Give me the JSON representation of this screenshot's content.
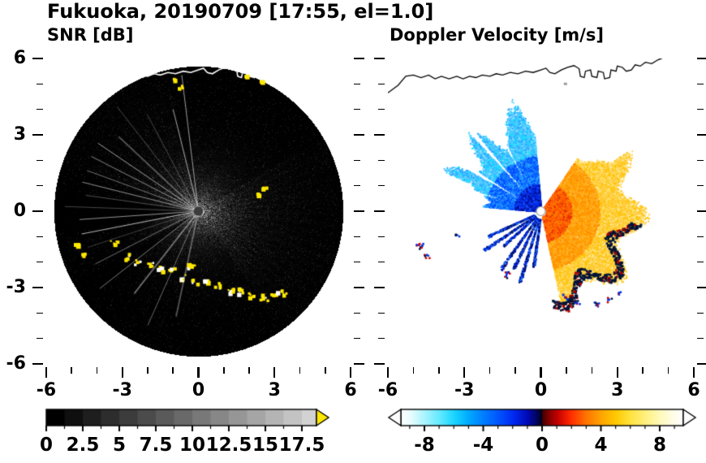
{
  "title": "Fukuoka, 20190709 [17:55, el=1.0]",
  "chart_data": {
    "type": "heatmap",
    "subtype": "radar-ppi-pair",
    "title": "Fukuoka, 20190709 [17:55, el=1.0]",
    "station": "Fukuoka",
    "date": "20190709",
    "time": "17:55",
    "elevation": "el=1.0",
    "panels": [
      {
        "label": "SNR [dB]",
        "xlim": [
          -6,
          6
        ],
        "ylim": [
          -6,
          6
        ],
        "xticks": [
          -6,
          -3,
          0,
          3,
          6
        ],
        "yticks": [
          6,
          3,
          0,
          -3,
          -6
        ],
        "minor_tick_step": 1,
        "scan_radius": 5.7,
        "colorbar": {
          "min": 0,
          "max": 18.5,
          "tick_values": [
            0,
            2.5,
            5,
            7.5,
            10,
            12.5,
            15,
            17.5
          ],
          "tick_labels": [
            "0",
            "2.5",
            "5",
            "7.5",
            "10",
            "12.5",
            "15",
            "17.5"
          ],
          "minor_step": 1.25,
          "colormap": "grayscale-black-to-lightgray",
          "over_arrow_color": "#ffe800"
        },
        "clutter_arc": [
          [
            -3.35,
            -1.25
          ],
          [
            -2.9,
            -1.75
          ],
          [
            -2.45,
            -2.0
          ],
          [
            -1.95,
            -2.1
          ],
          [
            -1.5,
            -2.25
          ],
          [
            -1.05,
            -2.3
          ],
          [
            -0.6,
            -2.55
          ],
          [
            -0.3,
            -2.1
          ],
          [
            -0.15,
            -2.7
          ],
          [
            0.3,
            -2.75
          ],
          [
            0.75,
            -2.9
          ],
          [
            1.2,
            -3.05
          ],
          [
            1.65,
            -3.1
          ],
          [
            2.1,
            -3.3
          ],
          [
            2.55,
            -3.35
          ],
          [
            2.95,
            -3.25
          ],
          [
            3.3,
            -3.15
          ]
        ],
        "clutter_blobs": [
          [
            -4.85,
            -1.3
          ],
          [
            -4.6,
            -1.65
          ],
          [
            2.3,
            0.75
          ],
          [
            2.55,
            0.9
          ],
          [
            -1.05,
            5.25
          ],
          [
            -0.75,
            4.95
          ],
          [
            1.9,
            5.3
          ],
          [
            2.5,
            5.2
          ]
        ],
        "features": [
          "black circular scan disk radius ~5.7 centered on radar origin",
          "bright speckled echo fan east of radar out to r~4",
          "thin bright radial spokes toward west-northwest and southwest",
          "yellow ground-clutter arc from (-3.3,-1.3) through (0.3,-2.8) to (3.3,-3.2)",
          "isolated yellow clutter blobs near (-4.8,-1.3) and (2.4,0.8)",
          "white coastline trace along top of scan with small yellow echoes",
          "gray radar blind-spot dot at origin"
        ]
      },
      {
        "label": "Doppler Velocity [m/s]",
        "xlim": [
          -6,
          6
        ],
        "ylim": [
          -6,
          6
        ],
        "xticks": [
          -6,
          -3,
          0,
          3,
          6
        ],
        "yticks": [
          6,
          3,
          0,
          -3,
          -6
        ],
        "minor_tick_step": 1,
        "colorbar": {
          "min": -9.6,
          "max": 9.6,
          "tick_values": [
            -8,
            -4,
            0,
            4,
            8
          ],
          "tick_labels": [
            "-8",
            "-4",
            "0",
            "4",
            "8"
          ],
          "minor_step": 1,
          "colormap": "white-cyan-blue-navy-red-orange-yellow-white",
          "under_arrow_color": "#ffffff",
          "over_arrow_color": "#ffffff"
        },
        "clutter_specks": [
          [
            -4.78,
            -1.32,
            0.14,
            12
          ],
          [
            -4.5,
            -1.72,
            0.1,
            6
          ],
          [
            -1.38,
            -2.48,
            0.13,
            9
          ],
          [
            -3.3,
            -0.95,
            0.08,
            4
          ],
          [
            0.9,
            -3.35,
            0.11,
            7
          ],
          [
            1.4,
            -3.55,
            0.1,
            6
          ],
          [
            2.15,
            -3.62,
            0.11,
            7
          ],
          [
            2.65,
            -3.45,
            0.1,
            5
          ],
          [
            3.05,
            -3.2,
            0.08,
            4
          ]
        ],
        "features": [
          "blue/cyan negative-velocity fan northwest of radar out to r~3.5",
          "white no-data ray gaps inside the blue fan",
          "orange/yellow positive-velocity fan east-southeast of radar out to r~3.8",
          "navy speckles along the southern edge of the positive fan",
          "mixed red/blue clutter specks near (-4.8,-1.4) and (-1.4,-2.5)",
          "navy blobs along bottom edge near (1,-3.4) to (3,-3.3)",
          "black coastline trace along top, white dot at radar origin"
        ]
      }
    ],
    "coastline": [
      [
        -6.0,
        4.65
      ],
      [
        -5.6,
        4.95
      ],
      [
        -5.3,
        5.3
      ],
      [
        -5.0,
        5.35
      ],
      [
        -4.7,
        5.25
      ],
      [
        -4.4,
        5.35
      ],
      [
        -4.15,
        5.2
      ],
      [
        -3.9,
        5.3
      ],
      [
        -3.6,
        5.2
      ],
      [
        -3.3,
        5.3
      ],
      [
        -3.05,
        5.2
      ],
      [
        -2.8,
        5.3
      ],
      [
        -2.55,
        5.25
      ],
      [
        -2.3,
        5.35
      ],
      [
        -2.0,
        5.3
      ],
      [
        -1.75,
        5.4
      ],
      [
        -1.5,
        5.35
      ],
      [
        -1.2,
        5.45
      ],
      [
        -0.9,
        5.4
      ],
      [
        -0.6,
        5.5
      ],
      [
        -0.3,
        5.45
      ],
      [
        0.0,
        5.55
      ],
      [
        0.2,
        5.62
      ],
      [
        0.35,
        5.45
      ],
      [
        0.55,
        5.4
      ],
      [
        0.8,
        5.55
      ],
      [
        1.05,
        5.65
      ],
      [
        1.3,
        5.72
      ],
      [
        1.5,
        5.6
      ],
      [
        1.55,
        5.3
      ],
      [
        1.7,
        5.25
      ],
      [
        1.75,
        5.5
      ],
      [
        1.95,
        5.55
      ],
      [
        2.0,
        5.3
      ],
      [
        2.2,
        5.25
      ],
      [
        2.25,
        5.5
      ],
      [
        2.45,
        5.45
      ],
      [
        2.5,
        5.2
      ],
      [
        2.7,
        5.25
      ],
      [
        2.75,
        5.55
      ],
      [
        2.95,
        5.5
      ],
      [
        3.0,
        5.7
      ],
      [
        3.2,
        5.65
      ],
      [
        3.35,
        5.5
      ],
      [
        3.55,
        5.55
      ],
      [
        3.7,
        5.75
      ],
      [
        3.9,
        5.7
      ],
      [
        4.1,
        5.85
      ],
      [
        4.35,
        5.8
      ],
      [
        4.6,
        5.95
      ],
      [
        4.85,
        6.05
      ]
    ],
    "velocity_colorbar_stops": [
      [
        0,
        "#ffffff"
      ],
      [
        0.035,
        "#e8fdff"
      ],
      [
        0.085,
        "#a8f4ff"
      ],
      [
        0.14,
        "#5fe9ff"
      ],
      [
        0.19,
        "#19d4ff"
      ],
      [
        0.24,
        "#00aaff"
      ],
      [
        0.29,
        "#0080ff"
      ],
      [
        0.345,
        "#0055ff"
      ],
      [
        0.4,
        "#0028f0"
      ],
      [
        0.45,
        "#0009b4"
      ],
      [
        0.48,
        "#000560"
      ],
      [
        0.499,
        "#02021c"
      ],
      [
        0.501,
        "#3c0000"
      ],
      [
        0.52,
        "#7a0000"
      ],
      [
        0.555,
        "#c40000"
      ],
      [
        0.6,
        "#ff2a00"
      ],
      [
        0.655,
        "#ff7300"
      ],
      [
        0.71,
        "#ffa500"
      ],
      [
        0.76,
        "#ffc800"
      ],
      [
        0.81,
        "#ffe23c"
      ],
      [
        0.865,
        "#fff07e"
      ],
      [
        0.92,
        "#fffabe"
      ],
      [
        0.965,
        "#fffde8"
      ],
      [
        1,
        "#ffffff"
      ]
    ]
  }
}
